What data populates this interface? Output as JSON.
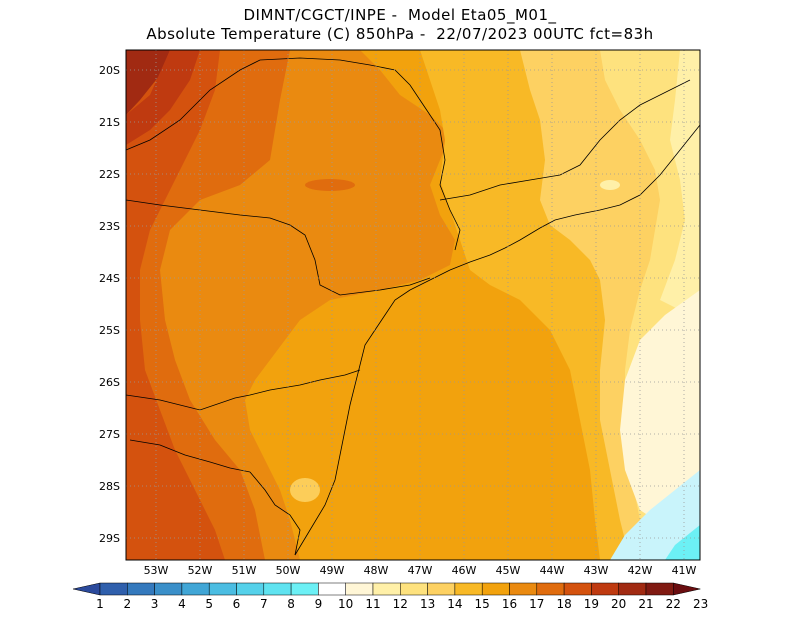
{
  "title_line1": "DIMNT/CGCT/INPE -  Model Eta05_M01_",
  "title_line2": "Absolute Temperature (C) 850hPa -  22/07/2023 00UTC fct=83h",
  "map": {
    "lat_ticks": [
      "20S",
      "21S",
      "22S",
      "23S",
      "24S",
      "25S",
      "26S",
      "27S",
      "28S",
      "29S"
    ],
    "lon_ticks": [
      "53W",
      "52W",
      "51W",
      "50W",
      "49W",
      "48W",
      "47W",
      "46W",
      "45W",
      "44W",
      "43W",
      "42W",
      "41W"
    ]
  },
  "colorbar": {
    "labels": [
      "1",
      "2",
      "3",
      "4",
      "5",
      "6",
      "7",
      "8",
      "9",
      "10",
      "11",
      "12",
      "13",
      "14",
      "15",
      "16",
      "17",
      "18",
      "19",
      "20",
      "21",
      "22",
      "23"
    ],
    "colors": [
      "#2b4a9c",
      "#2f5fac",
      "#3479bd",
      "#3a8fc9",
      "#41a6d6",
      "#4bbde2",
      "#55d1ea",
      "#5fe3f0",
      "#6cf0f5",
      "#ffffff",
      "#fff6d6",
      "#fff0a8",
      "#fee27e",
      "#fdd162",
      "#f8b926",
      "#f2a20d",
      "#ea8a10",
      "#e06c0e",
      "#d4520e",
      "#bf3a10",
      "#a12a12",
      "#801a12",
      "#6a0d10"
    ]
  }
}
